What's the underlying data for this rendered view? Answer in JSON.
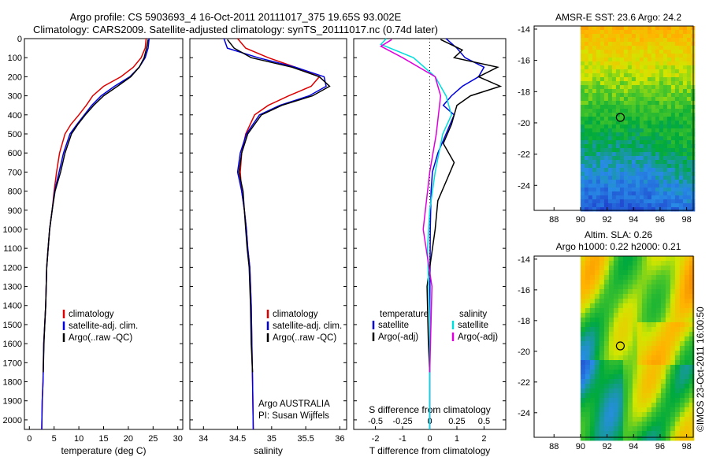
{
  "header": {
    "title_line1": "Argo profile: CS 5903693_4 16-Oct-2011 20111017_375 19.65S 93.002E",
    "title_line2": "Climatology: CARS2009. Satellite-adjusted climatology: synTS_20111017.nc (0.74d later)"
  },
  "colors": {
    "climatology": "#dd0000",
    "satellite_adj": "#0000dd",
    "argo": "#000000",
    "salinity_sat": "#00dddd",
    "salinity_argo": "#dd00dd"
  },
  "chart_data": [
    {
      "type": "line",
      "id": "temperature",
      "xlabel": "temperature (deg C)",
      "xlim": [
        -1,
        31
      ],
      "xticks": [
        0,
        5,
        10,
        15,
        20,
        25,
        30
      ],
      "ylim": [
        2050,
        0
      ],
      "yticks": [
        0,
        100,
        200,
        300,
        400,
        500,
        600,
        700,
        800,
        900,
        1000,
        1100,
        1200,
        1300,
        1400,
        1500,
        1600,
        1700,
        1800,
        1900,
        2000
      ],
      "legend": [
        "climatology",
        "satellite-adj. clim.",
        "Argo(..raw -QC)"
      ],
      "series": [
        {
          "name": "climatology",
          "color": "#dd0000",
          "x": [
            23.6,
            23.4,
            22.6,
            21.0,
            18.5,
            15.0,
            12.8,
            11.5,
            10.0,
            8.4,
            7.2,
            6.1,
            5.5,
            5.0,
            4.6,
            4.1,
            3.8,
            3.5,
            3.3,
            3.1,
            2.9,
            2.75,
            2.6,
            2.5
          ],
          "y": [
            0,
            50,
            100,
            150,
            200,
            250,
            300,
            350,
            400,
            450,
            500,
            600,
            700,
            800,
            900,
            1000,
            1100,
            1200,
            1400,
            1500,
            1600,
            1800,
            1900,
            2050
          ]
        },
        {
          "name": "satellite-adj. clim.",
          "color": "#0000dd",
          "x": [
            24.2,
            24.0,
            23.4,
            22.2,
            20.3,
            17.2,
            14.5,
            12.6,
            11.1,
            9.6,
            8.2,
            6.9,
            6.0,
            5.1,
            4.6,
            4.1,
            3.8,
            3.5,
            3.3,
            3.1,
            2.9,
            2.75,
            2.6,
            2.5
          ],
          "y": [
            0,
            50,
            100,
            150,
            200,
            250,
            300,
            350,
            400,
            450,
            500,
            600,
            700,
            800,
            900,
            1000,
            1100,
            1200,
            1400,
            1500,
            1600,
            1800,
            1900,
            2050
          ]
        },
        {
          "name": "Argo(..raw -QC)",
          "color": "#000000",
          "x": [
            24.0,
            23.7,
            23.2,
            22.2,
            20.5,
            17.8,
            15.0,
            13.0,
            11.3,
            9.8,
            8.5,
            7.2,
            6.3,
            5.2,
            4.6,
            4.1,
            3.8,
            3.5,
            3.3,
            3.1,
            2.95,
            2.8
          ],
          "y": [
            5,
            50,
            100,
            150,
            200,
            250,
            300,
            350,
            400,
            450,
            500,
            600,
            700,
            800,
            900,
            1000,
            1100,
            1200,
            1400,
            1500,
            1600,
            1750
          ]
        }
      ]
    },
    {
      "type": "line",
      "id": "salinity",
      "xlabel": "salinity",
      "xlim": [
        33.8,
        36.1
      ],
      "xticks": [
        34,
        34.5,
        35,
        35.5,
        36
      ],
      "ylim": [
        2050,
        0
      ],
      "legend": [
        "climatology",
        "satellite-adj. clim.",
        "Argo(..raw -QC)"
      ],
      "annotation": [
        "Argo AUSTRALIA",
        "PI: Susan Wijffels"
      ],
      "series": [
        {
          "name": "climatology",
          "color": "#dd0000",
          "x": [
            34.5,
            34.62,
            34.95,
            35.35,
            35.7,
            35.58,
            35.25,
            34.95,
            34.75,
            34.62,
            34.56,
            34.54,
            34.56,
            34.6,
            34.63,
            34.65,
            34.68,
            34.7,
            34.71,
            34.72,
            34.73
          ],
          "y": [
            0,
            50,
            100,
            150,
            200,
            250,
            300,
            350,
            400,
            500,
            600,
            700,
            800,
            900,
            1000,
            1100,
            1200,
            1400,
            1600,
            1800,
            2050
          ]
        },
        {
          "name": "satellite-adj. clim.",
          "color": "#0000dd",
          "x": [
            34.3,
            34.35,
            34.8,
            35.35,
            35.77,
            35.8,
            35.55,
            35.12,
            34.82,
            34.63,
            34.54,
            34.5,
            34.56,
            34.6,
            34.63,
            34.65,
            34.68,
            34.7,
            34.71,
            34.72,
            34.73
          ],
          "y": [
            0,
            50,
            100,
            150,
            200,
            250,
            300,
            350,
            400,
            500,
            600,
            700,
            800,
            900,
            1000,
            1100,
            1200,
            1400,
            1600,
            1800,
            2050
          ]
        },
        {
          "name": "Argo(..raw -QC)",
          "color": "#000000",
          "x": [
            34.35,
            34.45,
            34.7,
            35.3,
            35.7,
            35.85,
            35.6,
            35.15,
            34.85,
            34.65,
            34.56,
            34.52,
            34.58,
            34.6,
            34.62,
            34.64,
            34.67,
            34.69,
            34.7,
            34.72
          ],
          "y": [
            5,
            50,
            100,
            150,
            200,
            250,
            300,
            350,
            400,
            500,
            600,
            700,
            800,
            900,
            1000,
            1100,
            1200,
            1400,
            1600,
            1750
          ]
        }
      ]
    },
    {
      "type": "line",
      "id": "differences",
      "xlabel_bottom": "T difference from climatology",
      "xlabel_top": "S difference from climatology",
      "t_xlim": [
        -2.8,
        2.8
      ],
      "t_xticks": [
        -2,
        -1,
        0,
        1,
        2
      ],
      "s_xlim": [
        -0.7,
        0.7
      ],
      "s_xticks": [
        -0.5,
        -0.25,
        0,
        0.25,
        0.5
      ],
      "ylim": [
        2050,
        0
      ],
      "legend_temperature": {
        "title": "temperature",
        "items": [
          "satellite",
          "Argo(-adj)"
        ]
      },
      "legend_salinity": {
        "title": "salinity",
        "items": [
          "satellite",
          "Argo(-adj)"
        ]
      },
      "series": [
        {
          "name": "temperature satellite",
          "color": "#0000dd",
          "x": [
            0.6,
            1.0,
            1.3,
            2.0,
            1.8,
            1.2,
            0.8,
            0.5,
            0.9,
            0.6,
            0.3,
            0.1,
            0.05,
            0.02,
            0.0,
            0.0
          ],
          "y": [
            0,
            50,
            100,
            150,
            200,
            250,
            300,
            350,
            400,
            500,
            600,
            700,
            800,
            1000,
            1500,
            2050
          ]
        },
        {
          "name": "temperature Argo(-adj)",
          "color": "#000000",
          "x": [
            0.4,
            1.2,
            0.9,
            2.5,
            1.8,
            2.6,
            1.5,
            1.0,
            0.8,
            0.5,
            0.9,
            0.6,
            0.3,
            0.2,
            -0.1,
            -0.05,
            0.0
          ],
          "y": [
            5,
            60,
            100,
            150,
            200,
            250,
            300,
            350,
            450,
            550,
            650,
            750,
            850,
            1000,
            1300,
            1600,
            1750
          ]
        },
        {
          "name": "salinity satellite",
          "color": "#00dddd",
          "x": [
            -0.4,
            -0.45,
            -0.15,
            0.05,
            0.15,
            0.2,
            0.12,
            0.05,
            0.0,
            -0.02,
            0.0,
            0.0
          ],
          "y": [
            0,
            30,
            100,
            200,
            300,
            400,
            500,
            700,
            900,
            1100,
            1500,
            2050
          ]
        },
        {
          "name": "salinity Argo(-adj)",
          "color": "#dd00dd",
          "x": [
            -0.35,
            -0.45,
            -0.25,
            0.05,
            0.1,
            0.06,
            0.0,
            -0.06,
            0.02,
            0.0
          ],
          "y": [
            5,
            40,
            100,
            200,
            300,
            500,
            700,
            1000,
            1300,
            1750
          ]
        }
      ]
    },
    {
      "type": "heatmap",
      "id": "sst_map",
      "title": "AMSR-E SST: 23.6 Argo: 24.2",
      "xticks": [
        88,
        90,
        92,
        94,
        96,
        98
      ],
      "yticks": [
        -14,
        -16,
        -18,
        -20,
        -22,
        -24
      ],
      "xlim": [
        86.5,
        98.5
      ],
      "ylim": [
        -25.6,
        -13.8
      ],
      "data_extent_lon": [
        90,
        98.5
      ],
      "marker": {
        "lon": 93.0,
        "lat": -19.65
      }
    },
    {
      "type": "heatmap",
      "id": "sla_map",
      "title_line1": "Altim. SLA: 0.26",
      "title_line2": "Argo h1000: 0.22 h2000: 0.21",
      "xticks": [
        88,
        90,
        92,
        94,
        96,
        98
      ],
      "yticks": [
        -14,
        -16,
        -18,
        -20,
        -22,
        -24
      ],
      "xlim": [
        86.5,
        98.5
      ],
      "ylim": [
        -25.6,
        -13.8
      ],
      "data_extent_lon": [
        90,
        98.5
      ],
      "marker": {
        "lon": 93.0,
        "lat": -19.65
      }
    }
  ],
  "footer": {
    "credit": "©IMOS 23-Oct-2011 16:00:50"
  }
}
